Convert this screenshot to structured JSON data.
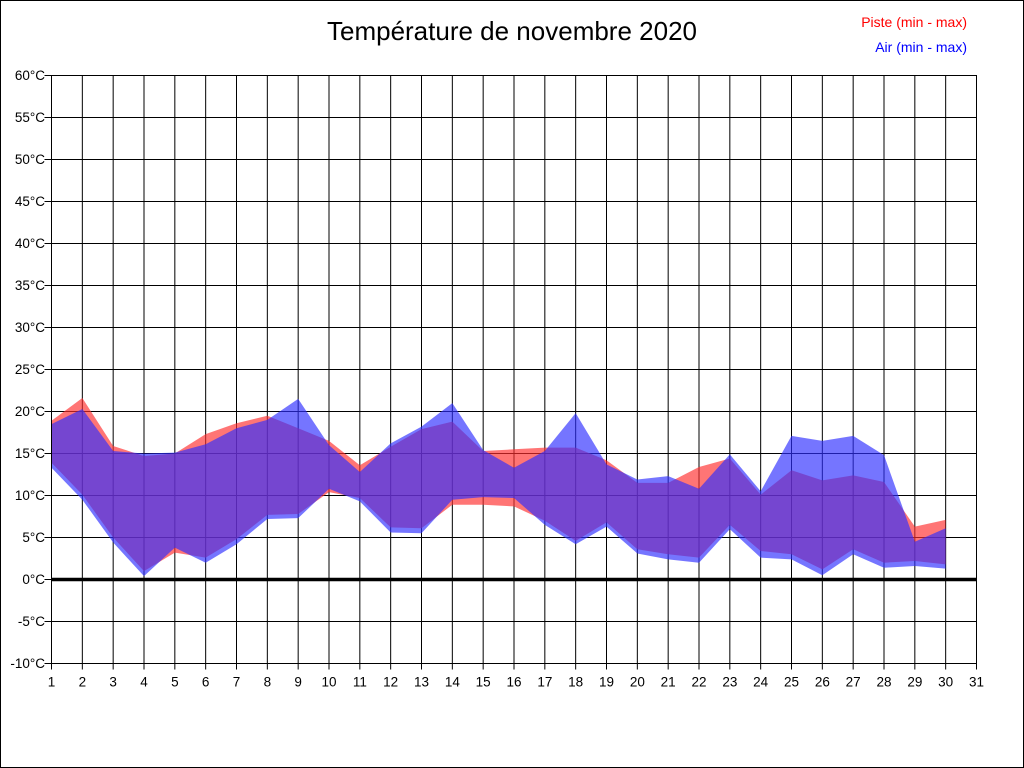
{
  "title": "Température de novembre 2020",
  "legend": {
    "position": "top-right",
    "items": [
      {
        "label": "Piste (min - max)",
        "color": "#ff0000"
      },
      {
        "label": "Air (min - max)",
        "color": "#0000ff"
      }
    ]
  },
  "chart_data": {
    "type": "area",
    "title": "Température de novembre 2020",
    "subtitle": "",
    "units": "°C",
    "grid": true,
    "legend_position": "top-right",
    "x_axis": {
      "min": 1,
      "max": 31,
      "step": 1,
      "tick_labels": [
        "1",
        "2",
        "3",
        "4",
        "5",
        "6",
        "7",
        "8",
        "9",
        "10",
        "11",
        "12",
        "13",
        "14",
        "15",
        "16",
        "17",
        "18",
        "19",
        "20",
        "21",
        "22",
        "23",
        "24",
        "25",
        "26",
        "27",
        "28",
        "29",
        "30",
        "31"
      ]
    },
    "y_axis": {
      "min": -10,
      "max": 60,
      "step": 5,
      "tick_suffix": "°C",
      "bold_zero_line": true
    },
    "days": [
      1,
      2,
      3,
      4,
      5,
      6,
      7,
      8,
      9,
      10,
      11,
      12,
      13,
      14,
      15,
      16,
      17,
      18,
      19,
      20,
      21,
      22,
      23,
      24,
      25,
      26,
      27,
      28,
      29,
      30
    ],
    "series": [
      {
        "name": "Piste (min - max)",
        "legend_color": "#ff0000",
        "fill": "rgba(255,45,45,0.66)",
        "min": [
          13.9,
          10.1,
          5.0,
          1.0,
          3.2,
          2.6,
          4.8,
          7.7,
          7.8,
          10.4,
          9.7,
          6.2,
          6.1,
          8.9,
          8.9,
          8.7,
          7.0,
          4.6,
          6.8,
          3.6,
          3.0,
          2.6,
          6.5,
          3.4,
          3.0,
          1.2,
          3.6,
          2.0,
          2.2,
          1.8
        ],
        "max": [
          18.9,
          21.6,
          15.9,
          14.7,
          15.0,
          17.3,
          18.6,
          19.5,
          18.0,
          16.5,
          13.6,
          15.8,
          17.9,
          18.8,
          15.3,
          15.5,
          15.7,
          15.7,
          14.2,
          11.5,
          11.5,
          13.4,
          14.4,
          10.1,
          13.0,
          11.8,
          12.4,
          11.6,
          6.3,
          7.1
        ]
      },
      {
        "name": "Air (min - max)",
        "legend_color": "#0000ff",
        "fill": "rgba(45,45,255,0.66)",
        "min": [
          13.3,
          9.5,
          4.4,
          0.4,
          3.8,
          2.0,
          4.2,
          7.2,
          7.3,
          10.8,
          9.3,
          5.6,
          5.5,
          9.5,
          9.8,
          9.7,
          6.5,
          4.2,
          6.3,
          3.1,
          2.4,
          2.0,
          6.0,
          2.6,
          2.4,
          0.5,
          3.0,
          1.4,
          1.6,
          1.3
        ],
        "max": [
          18.5,
          20.3,
          15.3,
          15.0,
          15.1,
          16.1,
          18.0,
          19.0,
          21.5,
          16.0,
          12.8,
          16.2,
          18.2,
          21.0,
          15.4,
          13.3,
          15.3,
          19.8,
          13.7,
          11.9,
          12.3,
          10.8,
          14.9,
          10.5,
          17.1,
          16.5,
          17.1,
          14.8,
          4.5,
          6.1
        ]
      }
    ]
  }
}
